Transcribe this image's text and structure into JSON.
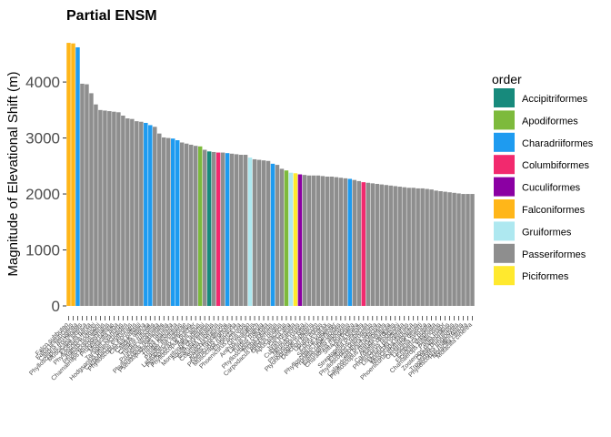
{
  "chart_data": {
    "type": "bar",
    "title": "Partial ENSM",
    "xlabel": "",
    "ylabel": "Magnitude of Elevational Shift (m)",
    "ylim": [
      0,
      4750
    ],
    "yticks": [
      "0",
      "1000",
      "2000",
      "3000",
      "4000"
    ],
    "ytick_values": [
      0,
      1000,
      2000,
      3000,
      4000
    ],
    "grid": false,
    "legend": {
      "title": "order",
      "position": "right",
      "entries": [
        {
          "name": "Accipitriformes",
          "color": "#178A7C"
        },
        {
          "name": "Apodiformes",
          "color": "#7DBA3C"
        },
        {
          "name": "Charadriiformes",
          "color": "#1E9BF0"
        },
        {
          "name": "Columbiformes",
          "color": "#F2296E"
        },
        {
          "name": "Cuculiformes",
          "color": "#8B00A3"
        },
        {
          "name": "Falconiformes",
          "color": "#FFB619"
        },
        {
          "name": "Gruiformes",
          "color": "#AEE8F0"
        },
        {
          "name": "Passeriformes",
          "color": "#8E8E8E"
        },
        {
          "name": "Piciformes",
          "color": "#FFE92E"
        }
      ]
    },
    "categories": [
      "Falco subbuteo",
      "Falco tinnunculus",
      "Calidris ferruginea",
      "Phylloscopus trochiloides",
      "Muscicapa sibirica",
      "Ficedula parva",
      "Phylloscopus humei",
      "Anthus hodgsoni",
      "Phylloscopus affinis",
      "Chamaerops leucocephalus",
      "Prunella collaris",
      "Motacilla alba",
      "Tarsiger cyanurus",
      "Hodgsonius phaenicuroides",
      "Carpodacus erythrinus",
      "Phylloscopus inornatus",
      "Cinclus pallasii",
      "Calidris alpina",
      "Calidris minuta",
      "Turdus ruficollis",
      "Prunella strophiata",
      "Phylloscopus reguloides",
      "Pseudopodoces humilis",
      "Tringa glareola",
      "Tringa nebularia",
      "Passer montanus",
      "Leptopoecile sophiae",
      "Pyrrhocorax graculus",
      "Phylloscopus pulcher",
      "Apus apus",
      "Montifringilla adamsi",
      "Aquila chrysaetos",
      "Garrulax lineatus",
      "Columba rupestris",
      "Saxicola maurus",
      "Actitis hypoleucos",
      "Phoenicurus frontalis",
      "Muscicapa ruficauda",
      "Emberiza cia",
      "Phoenicurus ochruros",
      "Grus virgo",
      "Anthus roseatus",
      "Lanius schach",
      "Turdus merula",
      "Phylloscopus collybita",
      "Tringa totanus",
      "Carpodacus pulcherrimus",
      "Oriolus oriolus",
      "Apus pacificus",
      "Fulica atra",
      "Jynx torquilla",
      "Cuculus canorus",
      "Hirundo rustica",
      "Phylloscopus tytleri",
      "Ptyonoprogne rupestris",
      "Delichon urbicum",
      "Upupa epops",
      "Corvus corax",
      "Sturnus vulgaris",
      "Phylloscopus fuligiventer",
      "Prunella rubeculoides",
      "Eremophila alpestris",
      "Charadrius mongolus",
      "Sitta europaea",
      "Tesia olivea",
      "Streptopelia orientalis",
      "Erithacus rubecula",
      "Phylloscopus chloronotus",
      "Zoothera dauma",
      "Calandrella brachydactyla",
      "Phylloscopus maculipennis",
      "Alauda gulgula",
      "Carduelis carduelis",
      "Phoenicurus hodgsoni",
      "Lonchura punctulata",
      "Monticola solitarius",
      "Muscicapa dauurica",
      "Phoenicurus erythrogastrus",
      "Oenanthe deserti",
      "Luscinia svecica",
      "Emberiza pusilla",
      "Ficedula strophiata",
      "Chamaerops fuliginosus",
      "Parus major",
      "Zosterops palpebrosus",
      "Cettia brunnifrons",
      "Troglodytes troglodytes",
      "Phylloscopus magnirostris",
      "Motacilla citreola",
      "Motacilla cinerea"
    ],
    "values": [
      4700,
      4690,
      4620,
      3970,
      3960,
      3800,
      3600,
      3500,
      3490,
      3480,
      3470,
      3460,
      3400,
      3350,
      3340,
      3300,
      3290,
      3270,
      3230,
      3200,
      3080,
      3010,
      3000,
      2990,
      2960,
      2920,
      2900,
      2880,
      2860,
      2850,
      2790,
      2760,
      2750,
      2740,
      2740,
      2730,
      2720,
      2710,
      2700,
      2700,
      2650,
      2620,
      2610,
      2600,
      2590,
      2540,
      2520,
      2450,
      2420,
      2380,
      2370,
      2350,
      2340,
      2330,
      2330,
      2330,
      2320,
      2310,
      2310,
      2300,
      2290,
      2280,
      2270,
      2250,
      2230,
      2210,
      2200,
      2190,
      2180,
      2170,
      2160,
      2150,
      2140,
      2130,
      2120,
      2110,
      2110,
      2100,
      2100,
      2090,
      2080,
      2060,
      2050,
      2040,
      2030,
      2020,
      2010,
      2000,
      2000,
      2000
    ],
    "orders": [
      "Falconiformes",
      "Falconiformes",
      "Charadriiformes",
      "Passeriformes",
      "Passeriformes",
      "Passeriformes",
      "Passeriformes",
      "Passeriformes",
      "Passeriformes",
      "Passeriformes",
      "Passeriformes",
      "Passeriformes",
      "Passeriformes",
      "Passeriformes",
      "Passeriformes",
      "Passeriformes",
      "Passeriformes",
      "Charadriiformes",
      "Charadriiformes",
      "Passeriformes",
      "Passeriformes",
      "Passeriformes",
      "Passeriformes",
      "Charadriiformes",
      "Charadriiformes",
      "Passeriformes",
      "Passeriformes",
      "Passeriformes",
      "Passeriformes",
      "Apodiformes",
      "Passeriformes",
      "Accipitriformes",
      "Passeriformes",
      "Columbiformes",
      "Passeriformes",
      "Charadriiformes",
      "Passeriformes",
      "Passeriformes",
      "Passeriformes",
      "Passeriformes",
      "Gruiformes",
      "Passeriformes",
      "Passeriformes",
      "Passeriformes",
      "Passeriformes",
      "Charadriiformes",
      "Passeriformes",
      "Passeriformes",
      "Apodiformes",
      "Gruiformes",
      "Piciformes",
      "Cuculiformes",
      "Passeriformes",
      "Passeriformes",
      "Passeriformes",
      "Passeriformes",
      "Passeriformes",
      "Passeriformes",
      "Passeriformes",
      "Passeriformes",
      "Passeriformes",
      "Passeriformes",
      "Charadriiformes",
      "Passeriformes",
      "Passeriformes",
      "Columbiformes",
      "Passeriformes",
      "Passeriformes",
      "Passeriformes",
      "Passeriformes",
      "Passeriformes",
      "Passeriformes",
      "Passeriformes",
      "Passeriformes",
      "Passeriformes",
      "Passeriformes",
      "Passeriformes",
      "Passeriformes",
      "Passeriformes",
      "Passeriformes",
      "Passeriformes",
      "Passeriformes",
      "Passeriformes",
      "Passeriformes",
      "Passeriformes",
      "Passeriformes",
      "Passeriformes",
      "Passeriformes",
      "Passeriformes",
      "Passeriformes"
    ]
  }
}
